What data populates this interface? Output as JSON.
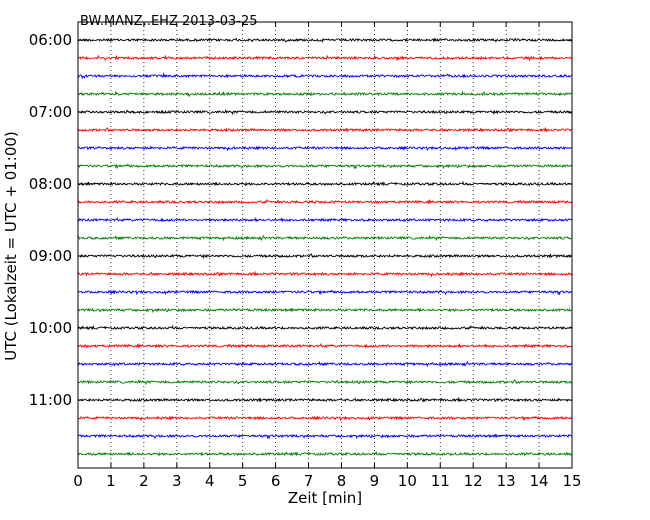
{
  "chart_data": {
    "type": "line",
    "title": "BW.MANZ..EHZ 2013-03-25",
    "xlabel": "Zeit  [min]",
    "ylabel": "UTC (Lokalzeit = UTC + 01:00)",
    "xlim": [
      0,
      15
    ],
    "x_ticks": [
      "0",
      "1",
      "2",
      "3",
      "4",
      "5",
      "6",
      "7",
      "8",
      "9",
      "10",
      "11",
      "12",
      "13",
      "14",
      "15"
    ],
    "y_ticks": [
      "06:00",
      "07:00",
      "08:00",
      "09:00",
      "10:00",
      "11:00"
    ],
    "start_time": "06:00",
    "trace_interval_min": 15,
    "trace_count": 24,
    "trace_colors": [
      "#000000",
      "#ff0000",
      "#0000ff",
      "#008000"
    ],
    "grid": "vertical dotted",
    "legend": "none"
  }
}
